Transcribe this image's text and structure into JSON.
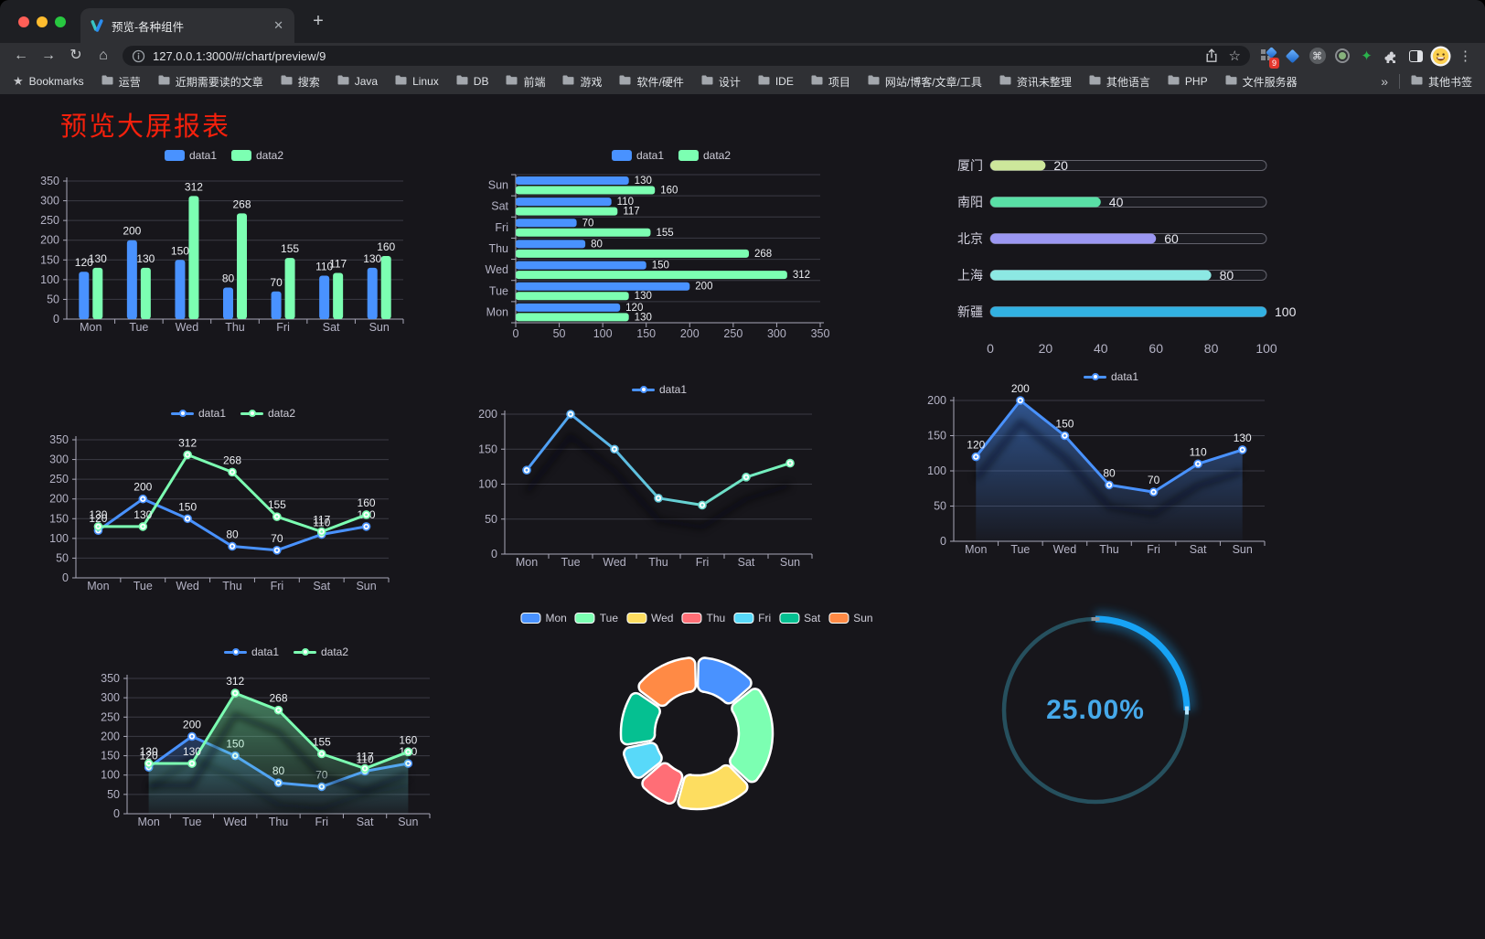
{
  "browser": {
    "tab": {
      "title": "预览-各种组件",
      "close_glyph": "✕",
      "new_tab_glyph": "+"
    },
    "address": {
      "url": "127.0.0.1:3000/#/chart/preview/9"
    },
    "icons": {
      "back": "←",
      "forward": "→",
      "reload": "↻",
      "home": "⌂",
      "bookmark_star": "☆",
      "menu": "⋮",
      "green_star": "✦",
      "command": "⌘",
      "overflow": "»",
      "bookmarks_star": "★"
    },
    "extension_badge": "9",
    "bookmarks_bar": {
      "bookmarks_label": "Bookmarks",
      "folders": [
        "运营",
        "近期需要读的文章",
        "搜索",
        "Java",
        "Linux",
        "DB",
        "前端",
        "游戏",
        "软件/硬件",
        "设计",
        "IDE",
        "项目",
        "网站/博客/文章/工具",
        "资讯未整理",
        "其他语言",
        "PHP",
        "文件服务器"
      ],
      "overflow_glyph": "»",
      "other_bookmarks": "其他书签"
    }
  },
  "page": {
    "title": "预览大屏报表"
  },
  "chart_data": [
    {
      "id": "vertical-bar",
      "type": "bar",
      "categories": [
        "Mon",
        "Tue",
        "Wed",
        "Thu",
        "Fri",
        "Sat",
        "Sun"
      ],
      "series": [
        {
          "name": "data1",
          "color": "#4992ff",
          "values": [
            120,
            200,
            150,
            80,
            70,
            110,
            130
          ]
        },
        {
          "name": "data2",
          "color": "#7cffb2",
          "values": [
            130,
            130,
            312,
            268,
            155,
            117,
            160
          ]
        }
      ],
      "ylim": [
        0,
        350
      ],
      "ytick_step": 50,
      "data_labels": true,
      "legend_position": "top",
      "grid": true
    },
    {
      "id": "horizontal-bar",
      "type": "bar-horizontal",
      "categories": [
        "Mon",
        "Tue",
        "Wed",
        "Thu",
        "Fri",
        "Sat",
        "Sun"
      ],
      "category_display": "Mon at bottom, Sun at top",
      "series": [
        {
          "name": "data1",
          "color": "#4992ff",
          "values": [
            120,
            200,
            150,
            80,
            70,
            110,
            130
          ]
        },
        {
          "name": "data2",
          "color": "#7cffb2",
          "values": [
            130,
            130,
            312,
            268,
            155,
            117,
            160
          ]
        }
      ],
      "xlim": [
        0,
        350
      ],
      "xtick_step": 50,
      "data_labels": true,
      "legend_position": "top"
    },
    {
      "id": "progress-list",
      "type": "progress",
      "xlim": [
        0,
        100
      ],
      "xticks": [
        0,
        20,
        40,
        60,
        80,
        100
      ],
      "items": [
        {
          "label": "厦门",
          "value": 20,
          "color": "#cde79b"
        },
        {
          "label": "南阳",
          "value": 40,
          "color": "#59dfa6"
        },
        {
          "label": "北京",
          "value": 60,
          "color": "#9b97f2"
        },
        {
          "label": "上海",
          "value": 80,
          "color": "#8ce8e3"
        },
        {
          "label": "新疆",
          "value": 100,
          "color": "#32b1e2"
        }
      ]
    },
    {
      "id": "two-series-line",
      "type": "line",
      "categories": [
        "Mon",
        "Tue",
        "Wed",
        "Thu",
        "Fri",
        "Sat",
        "Sun"
      ],
      "series": [
        {
          "name": "data1",
          "color": "#4992ff",
          "values": [
            120,
            200,
            150,
            80,
            70,
            110,
            130
          ]
        },
        {
          "name": "data2",
          "color": "#7cffb2",
          "values": [
            130,
            130,
            312,
            268,
            155,
            117,
            160
          ]
        }
      ],
      "ylim": [
        0,
        350
      ],
      "ytick_step": 50,
      "data_labels": true,
      "legend_position": "top"
    },
    {
      "id": "gradient-line",
      "type": "line",
      "categories": [
        "Mon",
        "Tue",
        "Wed",
        "Thu",
        "Fri",
        "Sat",
        "Sun"
      ],
      "series": [
        {
          "name": "data1",
          "gradient": [
            "#4992ff",
            "#7cffb2"
          ],
          "values": [
            120,
            200,
            150,
            80,
            70,
            110,
            130
          ]
        }
      ],
      "ylim": [
        0,
        200
      ],
      "ytick_step": 50,
      "data_labels": false,
      "legend_position": "top"
    },
    {
      "id": "single-area",
      "type": "area",
      "categories": [
        "Mon",
        "Tue",
        "Wed",
        "Thu",
        "Fri",
        "Sat",
        "Sun"
      ],
      "series": [
        {
          "name": "data1",
          "color": "#4992ff",
          "values": [
            120,
            200,
            150,
            80,
            70,
            110,
            130
          ],
          "area": true
        }
      ],
      "ylim": [
        0,
        200
      ],
      "ytick_step": 50,
      "data_labels": true,
      "legend_position": "top"
    },
    {
      "id": "two-series-area",
      "type": "area",
      "categories": [
        "Mon",
        "Tue",
        "Wed",
        "Thu",
        "Fri",
        "Sat",
        "Sun"
      ],
      "series": [
        {
          "name": "data1",
          "color": "#4992ff",
          "values": [
            120,
            200,
            150,
            80,
            70,
            110,
            130
          ],
          "area": true
        },
        {
          "name": "data2",
          "color": "#7cffb2",
          "values": [
            130,
            130,
            312,
            268,
            155,
            117,
            160
          ],
          "area": true
        }
      ],
      "ylim": [
        0,
        350
      ],
      "ytick_step": 50,
      "data_labels": true,
      "legend_position": "top"
    },
    {
      "id": "donut-pie",
      "type": "pie",
      "items": [
        {
          "label": "Mon",
          "value": 120,
          "color": "#4992ff"
        },
        {
          "label": "Tue",
          "value": 200,
          "color": "#7cffb2"
        },
        {
          "label": "Wed",
          "value": 150,
          "color": "#fddd60"
        },
        {
          "label": "Thu",
          "value": 80,
          "color": "#ff6e76"
        },
        {
          "label": "Fri",
          "value": 70,
          "color": "#58d9f9"
        },
        {
          "label": "Sat",
          "value": 110,
          "color": "#05c091"
        },
        {
          "label": "Sun",
          "value": 130,
          "color": "#ff8a45"
        }
      ],
      "legend_position": "top"
    },
    {
      "id": "gauge",
      "type": "gauge",
      "value": 25,
      "max": 100,
      "display": "25.00%",
      "progress_color": "#17a3f5",
      "track_color": "#26505e",
      "text_color": "#46a9ea"
    }
  ]
}
